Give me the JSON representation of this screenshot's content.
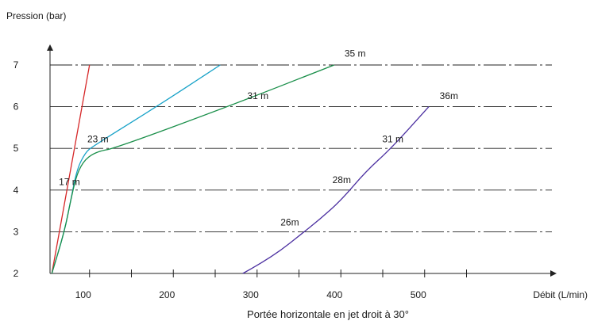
{
  "chart_data": {
    "type": "line",
    "title": "",
    "ylabel": "Pression (bar)",
    "xlabel": "Débit (L/min)",
    "caption": "Portée horizontale en jet droit à 30°",
    "xlim": [
      50,
      550
    ],
    "ylim": [
      2,
      7
    ],
    "x_ticks": [
      100,
      200,
      300,
      400,
      500
    ],
    "x_tick_labels": [
      "100",
      "200",
      "300",
      "400",
      "500"
    ],
    "y_ticks": [
      2,
      3,
      4,
      5,
      6,
      7
    ],
    "y_tick_labels": [
      "2",
      "3",
      "4",
      "5",
      "6",
      "7"
    ],
    "grid": "horizontal dash-dot at each pressure",
    "series": [
      {
        "color": "#d62728",
        "points": [
          [
            55,
            2
          ],
          [
            100,
            7
          ]
        ]
      },
      {
        "color": "#17a2c8",
        "points": [
          [
            55,
            2
          ],
          [
            70,
            3
          ],
          [
            78,
            3.8
          ],
          [
            85,
            4.5
          ],
          [
            95,
            4.9
          ],
          [
            104,
            5.05
          ],
          [
            180,
            6
          ],
          [
            256,
            7
          ]
        ]
      },
      {
        "color": "#1a8f4a",
        "points": [
          [
            55,
            2
          ],
          [
            70,
            3
          ],
          [
            78,
            3.8
          ],
          [
            85,
            4.4
          ],
          [
            95,
            4.75
          ],
          [
            110,
            4.93
          ],
          [
            130,
            5
          ],
          [
            265,
            6
          ],
          [
            392,
            7
          ]
        ]
      },
      {
        "color": "#4b2fa0",
        "points": [
          [
            283,
            2
          ],
          [
            305,
            2.25
          ],
          [
            328,
            2.55
          ],
          [
            350,
            2.9
          ],
          [
            375,
            3.3
          ],
          [
            400,
            3.75
          ],
          [
            430,
            4.45
          ],
          [
            460,
            5
          ],
          [
            505,
            6
          ]
        ]
      }
    ],
    "annotations": [
      {
        "text": "17 m",
        "x": 76,
        "y": 4.12
      },
      {
        "text": "23 m",
        "x": 110,
        "y": 5.15
      },
      {
        "text": "31 m",
        "x": 301,
        "y": 6.18
      },
      {
        "text": "35 m",
        "x": 417,
        "y": 7.2
      },
      {
        "text": "26m",
        "x": 339,
        "y": 3.15
      },
      {
        "text": "28m",
        "x": 401,
        "y": 4.17
      },
      {
        "text": "31 m",
        "x": 462,
        "y": 5.15
      },
      {
        "text": "36m",
        "x": 529,
        "y": 6.18
      }
    ]
  }
}
